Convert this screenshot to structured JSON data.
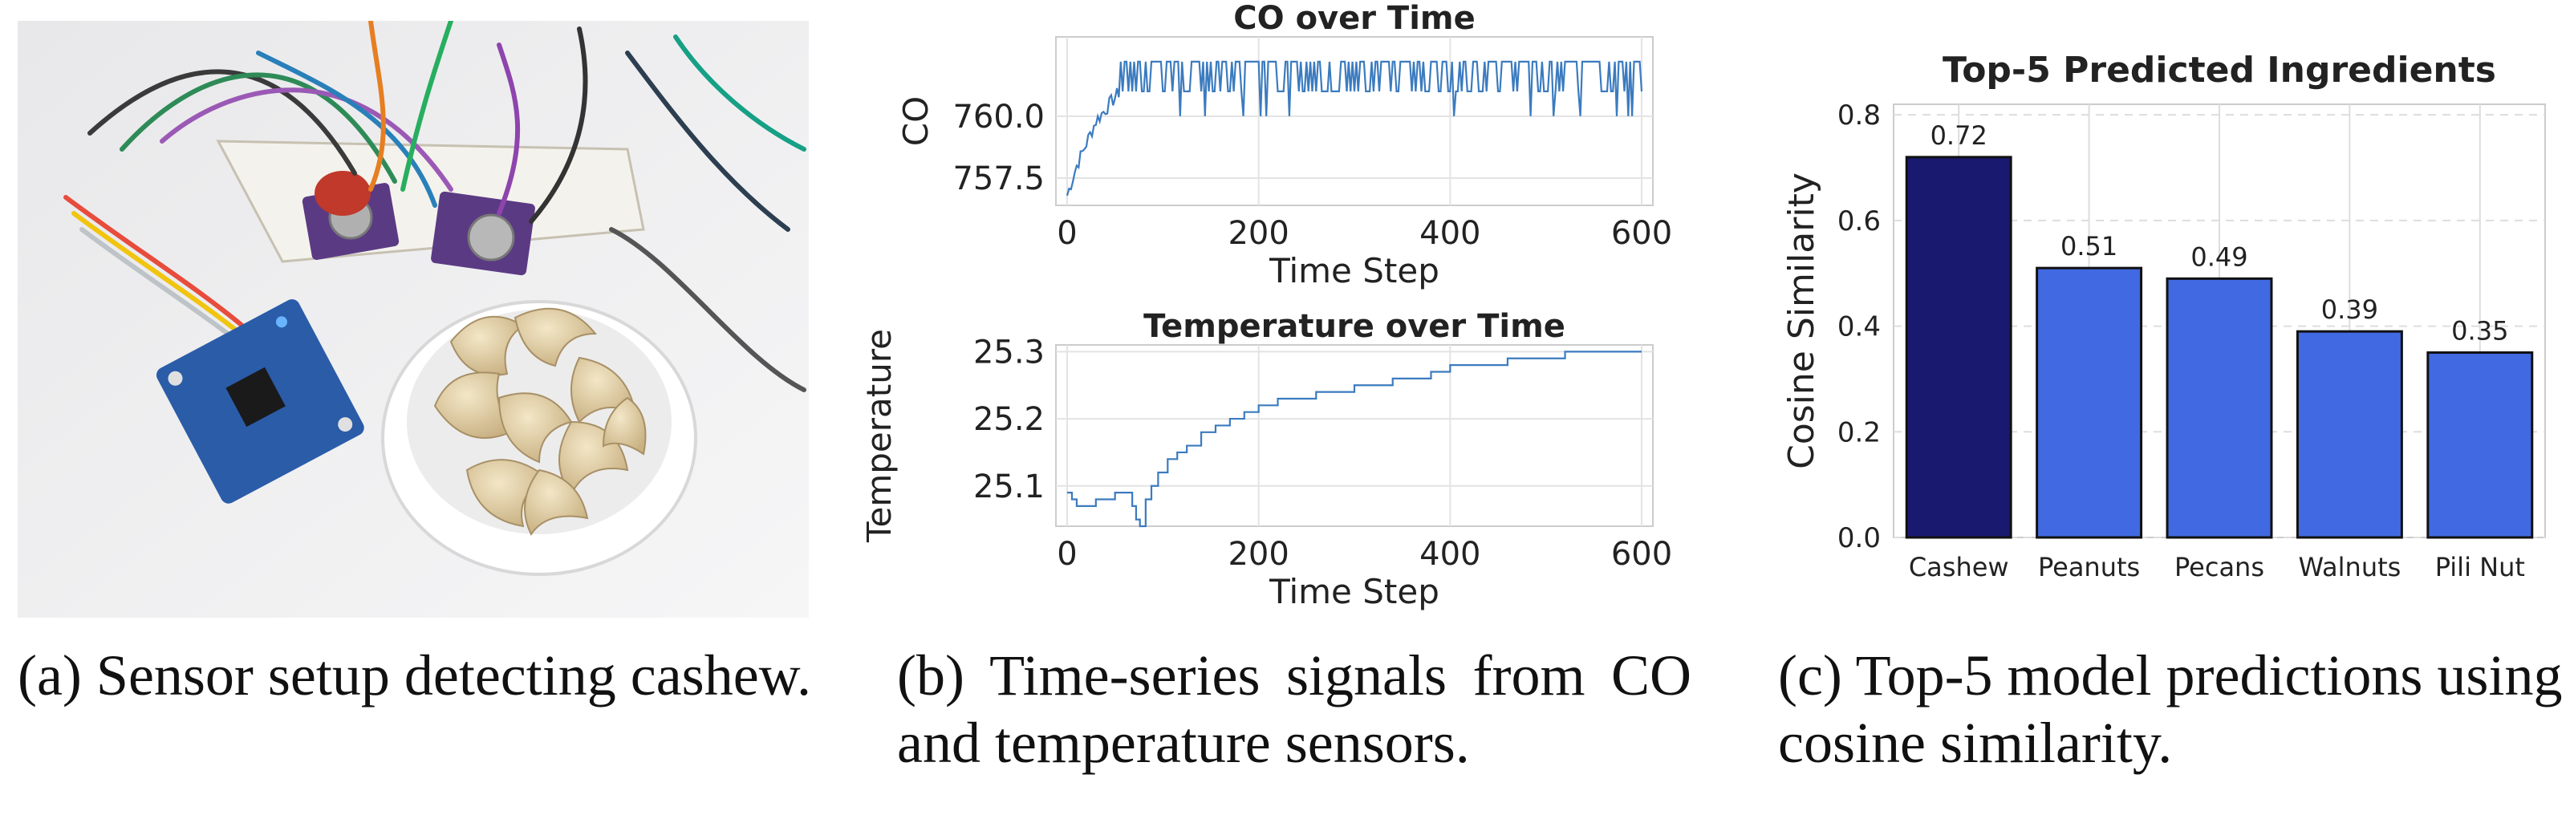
{
  "captions": {
    "a": "(a) Sensor setup detecting cashew.",
    "b": "(b) Time-series signals from CO and temperature sensors.",
    "c": "(c) Top-5 model predictions using cosine similarity."
  },
  "chart_data": [
    {
      "type": "line",
      "title": "CO over Time",
      "xlabel": "Time Step",
      "ylabel": "CO",
      "xlim": [
        0,
        600
      ],
      "ylim": [
        756.4,
        763.2
      ],
      "xticks": [
        "0",
        "200",
        "400",
        "600"
      ],
      "yticks": [
        "757.5",
        "760.0"
      ],
      "grid": true,
      "color": "#3b7bbf",
      "series": [
        {
          "values_description": "noisy step signal",
          "segments": [
            {
              "from": 0,
              "to": 10,
              "start": 756.8,
              "end": 758.0
            },
            {
              "from": 10,
              "to": 30,
              "start": 758.0,
              "end": 759.8
            },
            {
              "from": 30,
              "to": 55,
              "start": 759.8,
              "end": 761.0
            },
            {
              "from": 55,
              "to": 600,
              "start": 761.0,
              "end": 761.0
            }
          ],
          "high": 762.2,
          "low": 760.0
        }
      ]
    },
    {
      "type": "line",
      "title": "Temperature over Time",
      "xlabel": "Time Step",
      "ylabel": "Temperature",
      "xlim": [
        0,
        600
      ],
      "ylim": [
        25.04,
        25.31
      ],
      "xticks": [
        "0",
        "200",
        "400",
        "600"
      ],
      "yticks": [
        "25.1",
        "25.2",
        "25.3"
      ],
      "grid": true,
      "color": "#3b7bbf",
      "points": [
        [
          0,
          25.09
        ],
        [
          5,
          25.08
        ],
        [
          10,
          25.07
        ],
        [
          25,
          25.07
        ],
        [
          30,
          25.08
        ],
        [
          45,
          25.08
        ],
        [
          50,
          25.09
        ],
        [
          60,
          25.09
        ],
        [
          68,
          25.07
        ],
        [
          72,
          25.05
        ],
        [
          76,
          25.04
        ],
        [
          82,
          25.08
        ],
        [
          88,
          25.1
        ],
        [
          95,
          25.12
        ],
        [
          105,
          25.14
        ],
        [
          115,
          25.15
        ],
        [
          125,
          25.16
        ],
        [
          140,
          25.18
        ],
        [
          155,
          25.19
        ],
        [
          170,
          25.2
        ],
        [
          185,
          25.21
        ],
        [
          200,
          25.22
        ],
        [
          220,
          25.23
        ],
        [
          240,
          25.23
        ],
        [
          260,
          25.24
        ],
        [
          280,
          25.24
        ],
        [
          300,
          25.25
        ],
        [
          320,
          25.25
        ],
        [
          340,
          25.26
        ],
        [
          360,
          25.26
        ],
        [
          380,
          25.27
        ],
        [
          400,
          25.28
        ],
        [
          420,
          25.28
        ],
        [
          440,
          25.28
        ],
        [
          460,
          25.29
        ],
        [
          480,
          25.29
        ],
        [
          500,
          25.29
        ],
        [
          520,
          25.3
        ],
        [
          540,
          25.3
        ],
        [
          560,
          25.3
        ],
        [
          580,
          25.3
        ],
        [
          600,
          25.3
        ]
      ]
    },
    {
      "type": "bar",
      "title": "Top-5 Predicted Ingredients",
      "xlabel": "",
      "ylabel": "Cosine Similarity",
      "ylim": [
        0,
        0.82
      ],
      "yticks": [
        "0.0",
        "0.2",
        "0.4",
        "0.6",
        "0.8"
      ],
      "categories": [
        "Cashew",
        "Peanuts",
        "Pecans",
        "Walnuts",
        "Pili Nut"
      ],
      "values": [
        0.72,
        0.51,
        0.49,
        0.39,
        0.35
      ],
      "data_labels": [
        "0.72",
        "0.51",
        "0.49",
        "0.39",
        "0.35"
      ],
      "colors": [
        "#191970",
        "#4169e1",
        "#4169e1",
        "#4169e1",
        "#4169e1"
      ],
      "grid": true
    }
  ]
}
